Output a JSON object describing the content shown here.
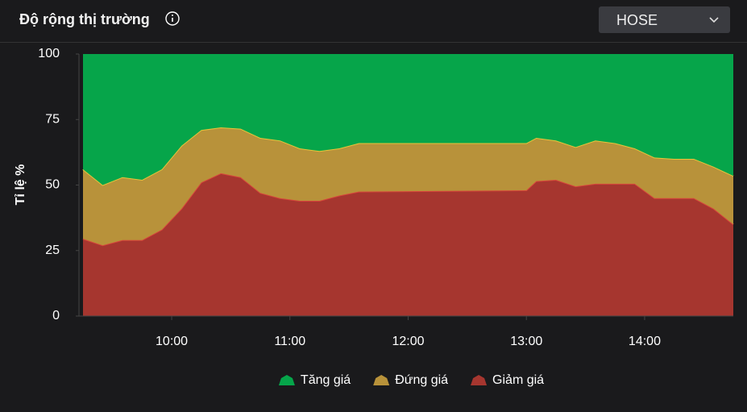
{
  "header": {
    "title": "Độ rộng thị trường",
    "market": "HOSE"
  },
  "chart_data": {
    "type": "area",
    "stacked": true,
    "y_label": "Tỉ lệ %",
    "x": [
      555,
      565,
      575,
      585,
      595,
      605,
      615,
      625,
      635,
      645,
      655,
      665,
      675,
      685,
      695,
      780,
      785,
      795,
      805,
      815,
      825,
      835,
      845,
      855,
      865,
      875,
      885
    ],
    "series": [
      {
        "name": "Tăng giá",
        "color": "#06a54a",
        "values": [
          44,
          50,
          47,
          48,
          44,
          35,
          29,
          28,
          28.5,
          32,
          33,
          36,
          37,
          36,
          34,
          34,
          32,
          33,
          35.5,
          33,
          34,
          36,
          39.5,
          40,
          40,
          43,
          46.5
        ]
      },
      {
        "name": "Đứng giá",
        "color": "#b8923a",
        "edge": "#e8c43a",
        "values": [
          26.5,
          23,
          24,
          23,
          23,
          24,
          20,
          17.5,
          18.5,
          21,
          22,
          20,
          19,
          18,
          18.5,
          18,
          16.5,
          15,
          15,
          16.5,
          15.5,
          13.5,
          15.5,
          15,
          15,
          16,
          18.5
        ]
      },
      {
        "name": "Giảm giá",
        "color": "#a6362f",
        "edge": "#d8453b",
        "values": [
          29.5,
          27,
          29,
          29,
          33,
          41,
          51,
          54.5,
          53,
          47,
          45,
          44,
          44,
          46,
          47.5,
          48,
          51.5,
          52,
          49.5,
          50.5,
          50.5,
          50.5,
          45,
          45,
          45,
          41,
          35
        ]
      }
    ],
    "xlim": [
      555,
      885
    ],
    "xticks": [
      {
        "value": 600,
        "label": "10:00"
      },
      {
        "value": 660,
        "label": "11:00"
      },
      {
        "value": 720,
        "label": "12:00"
      },
      {
        "value": 780,
        "label": "13:00"
      },
      {
        "value": 840,
        "label": "14:00"
      }
    ],
    "ylim": [
      0,
      100
    ],
    "yticks": [
      0,
      25,
      50,
      75,
      100
    ],
    "grid": false,
    "legend": "bottom"
  }
}
